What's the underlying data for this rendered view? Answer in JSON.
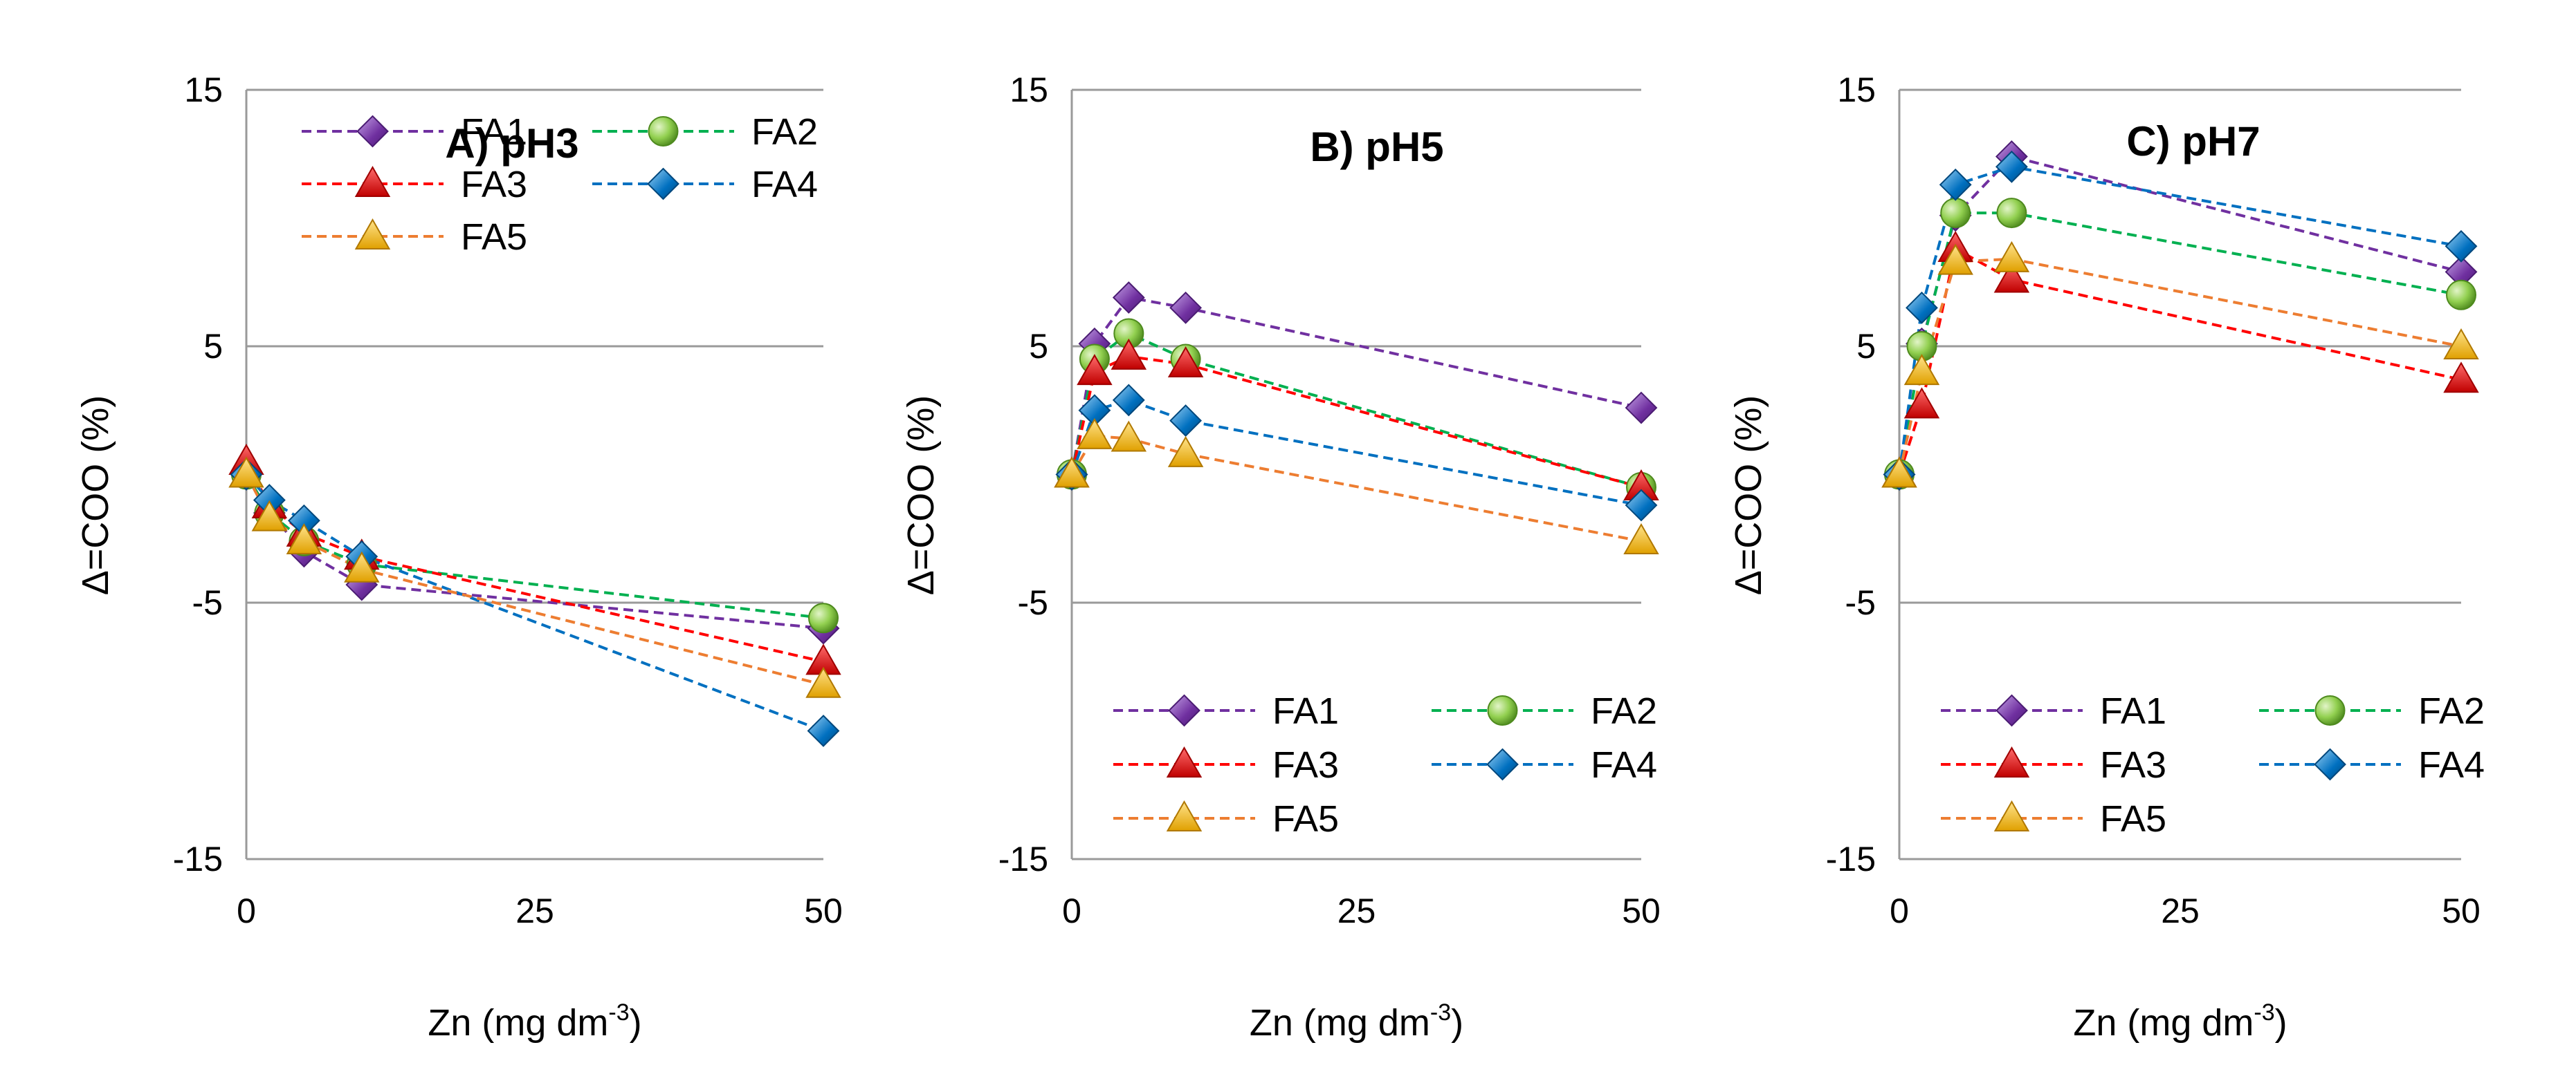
{
  "chart_data": [
    {
      "type": "line",
      "title": "A) pH3",
      "xlabel": "Zn (mg dm",
      "xlabel_sup": "-3",
      "xlabel_suffix": ")",
      "ylabel": "Δ=COO (%)",
      "xlim": [
        0,
        50
      ],
      "ylim": [
        -15,
        15
      ],
      "xticks": [
        "0",
        "25",
        "50"
      ],
      "yticks": [
        "-15",
        "-5",
        "5",
        "15"
      ],
      "grid": "horizontal",
      "legend_position": "top",
      "x": [
        0,
        2,
        5,
        10,
        50
      ],
      "series": [
        {
          "name": "FA1",
          "values": [
            0,
            -1.5,
            -3,
            -4.3,
            -6
          ],
          "color": "#7030A0",
          "marker": "diamond"
        },
        {
          "name": "FA2",
          "values": [
            0,
            -1.5,
            -2.6,
            -3.5,
            -5.6
          ],
          "color": "#00B050",
          "marker": "circle"
        },
        {
          "name": "FA3",
          "values": [
            0.5,
            -1.2,
            -2.3,
            -3.2,
            -7.3
          ],
          "color": "#FF0000",
          "marker": "triangle"
        },
        {
          "name": "FA4",
          "values": [
            0,
            -1,
            -1.8,
            -3.2,
            -10
          ],
          "color": "#0070C0",
          "marker": "diamond-blue"
        },
        {
          "name": "FA5",
          "values": [
            0,
            -1.7,
            -2.6,
            -3.7,
            -8.2
          ],
          "color": "#ED7D31",
          "marker": "triangle-gold"
        }
      ]
    },
    {
      "type": "line",
      "title": "B) pH5",
      "xlabel": "Zn (mg dm",
      "xlabel_sup": "-3",
      "xlabel_suffix": ")",
      "ylabel": "Δ=COO (%)",
      "xlim": [
        0,
        50
      ],
      "ylim": [
        -15,
        15
      ],
      "xticks": [
        "0",
        "25",
        "50"
      ],
      "yticks": [
        "-15",
        "-5",
        "5",
        "15"
      ],
      "grid": "horizontal",
      "legend_position": "bottom",
      "x": [
        0,
        2,
        5,
        10,
        50
      ],
      "series": [
        {
          "name": "FA1",
          "values": [
            0,
            5.1,
            6.9,
            6.5,
            2.6
          ],
          "color": "#7030A0",
          "marker": "diamond"
        },
        {
          "name": "FA2",
          "values": [
            0,
            4.5,
            5.5,
            4.5,
            -0.5
          ],
          "color": "#00B050",
          "marker": "circle"
        },
        {
          "name": "FA3",
          "values": [
            0,
            4,
            4.6,
            4.3,
            -0.5
          ],
          "color": "#FF0000",
          "marker": "triangle"
        },
        {
          "name": "FA4",
          "values": [
            0,
            2.5,
            2.9,
            2.1,
            -1.2
          ],
          "color": "#0070C0",
          "marker": "diamond-blue"
        },
        {
          "name": "FA5",
          "values": [
            0,
            1.5,
            1.4,
            0.8,
            -2.6
          ],
          "color": "#ED7D31",
          "marker": "triangle-gold"
        }
      ]
    },
    {
      "type": "line",
      "title": "C) pH7",
      "xlabel": "Zn (mg dm",
      "xlabel_sup": "-3",
      "xlabel_suffix": ")",
      "ylabel": "Δ=COO (%)",
      "xlim": [
        0,
        50
      ],
      "ylim": [
        -15,
        15
      ],
      "xticks": [
        "0",
        "25",
        "50"
      ],
      "yticks": [
        "-15",
        "-5",
        "5",
        "15"
      ],
      "grid": "horizontal",
      "legend_position": "bottom",
      "x": [
        0,
        2,
        5,
        10,
        50
      ],
      "series": [
        {
          "name": "FA1",
          "values": [
            0,
            5.1,
            10.1,
            12.4,
            7.9
          ],
          "color": "#7030A0",
          "marker": "diamond"
        },
        {
          "name": "FA2",
          "values": [
            0,
            5,
            10.2,
            10.2,
            7
          ],
          "color": "#00B050",
          "marker": "circle"
        },
        {
          "name": "FA3",
          "values": [
            0,
            2.7,
            8.8,
            7.6,
            3.7
          ],
          "color": "#FF0000",
          "marker": "triangle"
        },
        {
          "name": "FA4",
          "values": [
            0,
            6.5,
            11.3,
            12,
            8.9
          ],
          "color": "#0070C0",
          "marker": "diamond-blue"
        },
        {
          "name": "FA5",
          "values": [
            0,
            4,
            8.3,
            8.4,
            5
          ],
          "color": "#ED7D31",
          "marker": "triangle-gold"
        }
      ]
    }
  ]
}
